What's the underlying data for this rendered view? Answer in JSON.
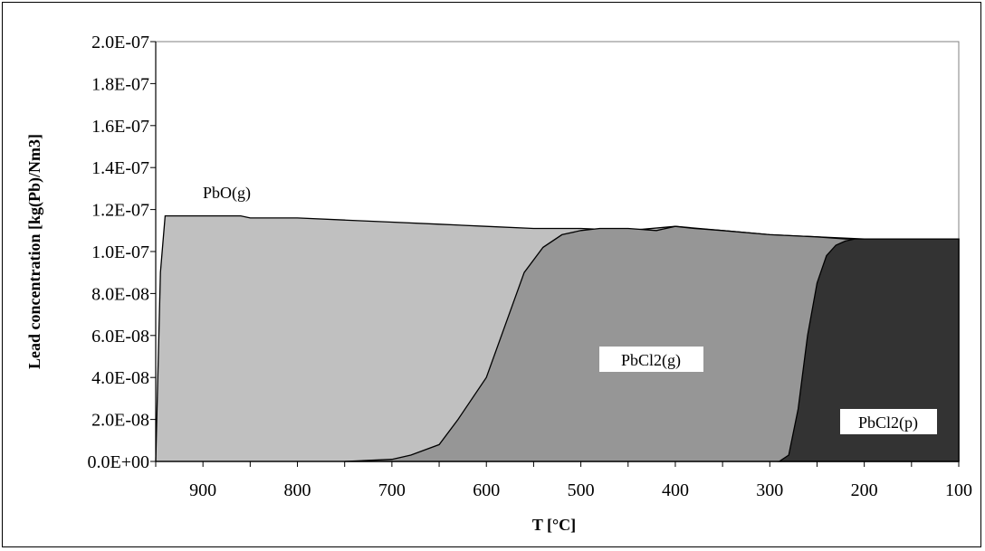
{
  "chart_data": {
    "type": "area",
    "xlabel": "T [°C]",
    "ylabel": "Lead concentration  [kg(Pb)/Nm3]",
    "xlim": [
      950,
      100
    ],
    "ylim": [
      0,
      2e-07
    ],
    "x_ticks": [
      "900",
      "800",
      "700",
      "600",
      "500",
      "400",
      "300",
      "200",
      "100"
    ],
    "y_ticks": [
      "0.0E+00",
      "2.0E-08",
      "4.0E-08",
      "6.0E-08",
      "8.0E-08",
      "1.0E-07",
      "1.2E-07",
      "1.4E-07",
      "1.6E-07",
      "1.8E-07",
      "2.0E-07"
    ],
    "grid": false,
    "colors": {
      "PbO(g)": "#c0c0c0",
      "PbCl2(g)": "#969696",
      "PbCl2(p)": "#333333"
    },
    "series": [
      {
        "name": "PbO(g)",
        "x": [
          950,
          945,
          940,
          930,
          900,
          860,
          850,
          800,
          750,
          700,
          650,
          600,
          550,
          500,
          450,
          400,
          350,
          300,
          250,
          200,
          150,
          100
        ],
        "y": [
          0,
          9e-08,
          1.17e-07,
          1.17e-07,
          1.17e-07,
          1.17e-07,
          1.16e-07,
          1.16e-07,
          1.15e-07,
          1.14e-07,
          1.13e-07,
          1.12e-07,
          1.11e-07,
          1.11e-07,
          1.1e-07,
          1.12e-07,
          1.1e-07,
          1.08e-07,
          1.07e-07,
          1.06e-07,
          1.06e-07,
          1.06e-07
        ]
      },
      {
        "name": "PbCl2(g)",
        "x": [
          750,
          700,
          680,
          650,
          630,
          600,
          580,
          560,
          540,
          520,
          500,
          480,
          450,
          420,
          400,
          380,
          350,
          300,
          250,
          220,
          200,
          150,
          100
        ],
        "y": [
          0,
          1e-09,
          3e-09,
          8e-09,
          2e-08,
          4e-08,
          6.5e-08,
          9e-08,
          1.02e-07,
          1.08e-07,
          1.1e-07,
          1.11e-07,
          1.11e-07,
          1.1e-07,
          1.12e-07,
          1.11e-07,
          1.1e-07,
          1.08e-07,
          1.07e-07,
          1.06e-07,
          1.06e-07,
          1.06e-07,
          1.06e-07
        ]
      },
      {
        "name": "PbCl2(p)",
        "x": [
          290,
          280,
          270,
          260,
          250,
          240,
          230,
          220,
          210,
          200,
          150,
          100
        ],
        "y": [
          0,
          3e-09,
          2.5e-08,
          6e-08,
          8.5e-08,
          9.8e-08,
          1.03e-07,
          1.05e-07,
          1.06e-07,
          1.06e-07,
          1.06e-07,
          1.06e-07
        ]
      }
    ],
    "annotations": [
      "PbO(g)",
      "PbCl2(g)",
      "PbCl2(p)"
    ]
  }
}
